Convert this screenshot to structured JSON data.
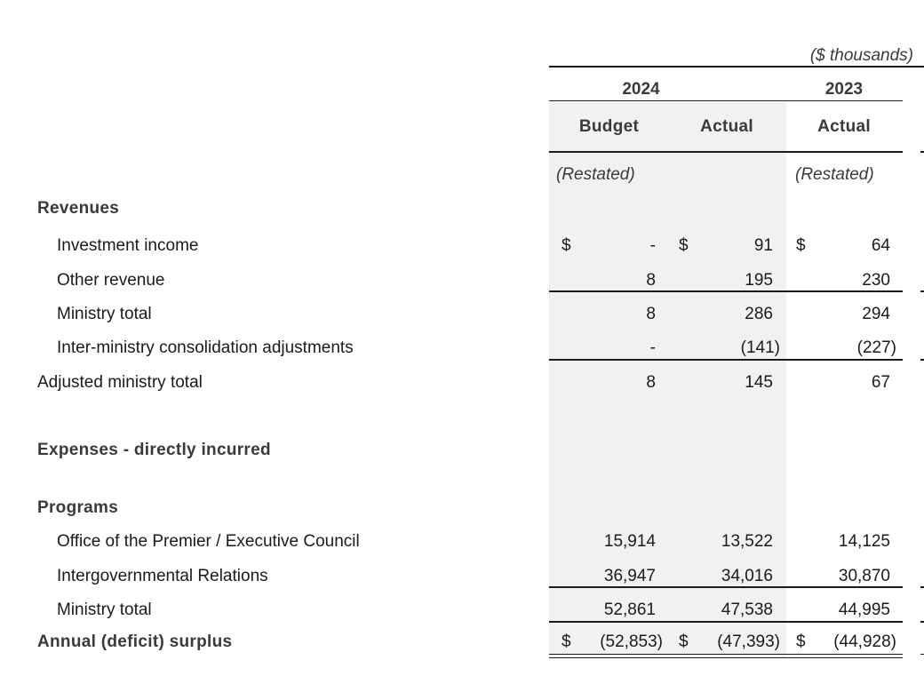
{
  "header": {
    "units": "($ thousands)",
    "year_2024": "2024",
    "year_2023": "2023",
    "col_budget": "Budget",
    "col_actual_2024": "Actual",
    "col_actual_2023": "Actual",
    "restated_budget": "(Restated)",
    "restated_2023": "(Restated)"
  },
  "rows": {
    "revenues": {
      "label": "Revenues"
    },
    "investment_income": {
      "label": "Investment income",
      "cur_budget": "$",
      "budget": "-",
      "cur_actual": "$",
      "actual": "91",
      "cur_2023": "$",
      "prior": "64"
    },
    "other_revenue": {
      "label": "Other revenue",
      "budget": "8",
      "actual": "195",
      "prior": "230"
    },
    "rev_ministry_total": {
      "label": "Ministry total",
      "budget": "8",
      "actual": "286",
      "prior": "294"
    },
    "inter_ministry": {
      "label": "Inter-ministry consolidation adjustments",
      "budget": "-",
      "actual": "(141)",
      "prior": "(227)"
    },
    "adjusted_total": {
      "label": "Adjusted ministry total",
      "budget": "8",
      "actual": "145",
      "prior": "67"
    },
    "expenses": {
      "label": "Expenses - directly incurred"
    },
    "programs": {
      "label": "Programs"
    },
    "premier_office": {
      "label": "Office of the Premier / Executive Council",
      "budget": "15,914",
      "actual": "13,522",
      "prior": "14,125"
    },
    "intergov": {
      "label": "Intergovernmental Relations",
      "budget": "36,947",
      "actual": "34,016",
      "prior": "30,870"
    },
    "exp_ministry_total": {
      "label": "Ministry total",
      "budget": "52,861",
      "actual": "47,538",
      "prior": "44,995"
    },
    "annual": {
      "label": "Annual (deficit) surplus",
      "cur_budget": "$",
      "budget": "(52,853)",
      "cur_actual": "$",
      "actual": "(47,393)",
      "cur_2023": "$",
      "prior": "(44,928)"
    }
  }
}
